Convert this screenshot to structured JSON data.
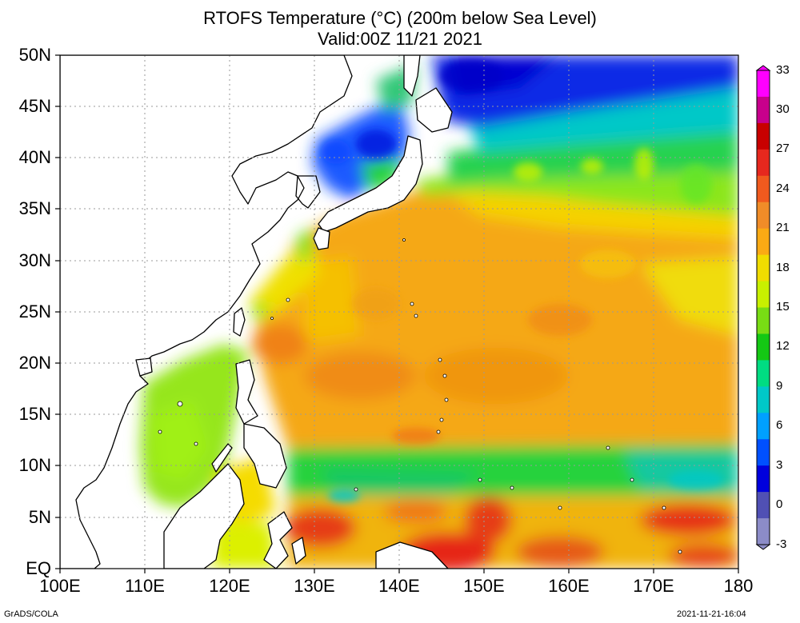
{
  "title": "RTOFS Temperature (°C) (200m below Sea Level)",
  "valid": "Valid:00Z 11/21 2021",
  "lat_labels": [
    "50N",
    "45N",
    "40N",
    "35N",
    "30N",
    "25N",
    "20N",
    "15N",
    "10N",
    "5N",
    "EQ"
  ],
  "lon_labels": [
    "100E",
    "110E",
    "120E",
    "130E",
    "140E",
    "150E",
    "160E",
    "170E",
    "180"
  ],
  "colorbar": {
    "labels": [
      "33",
      "30",
      "27",
      "24",
      "21",
      "18",
      "15",
      "12",
      "9",
      "6",
      "3",
      "0",
      "-3"
    ],
    "colors": [
      "#ff00ff",
      "#c8008c",
      "#c80000",
      "#e6281e",
      "#f05a1e",
      "#f08c28",
      "#faaa14",
      "#f0dc00",
      "#c8f000",
      "#78dc14",
      "#14c814",
      "#00dc82",
      "#00c8c8",
      "#00a0ff",
      "#0050ff",
      "#0000dc",
      "#5050b4",
      "#8c8cc8"
    ]
  },
  "footer_left": "GrADS/COLA",
  "footer_right": "2021-11-21-16:04",
  "colors": {
    "cold": "#0014e6",
    "cool": "#00c8d2",
    "mild": "#28dc28",
    "warm": "#f5dc00",
    "hot": "#f0a000",
    "hottest": "#e62814"
  }
}
